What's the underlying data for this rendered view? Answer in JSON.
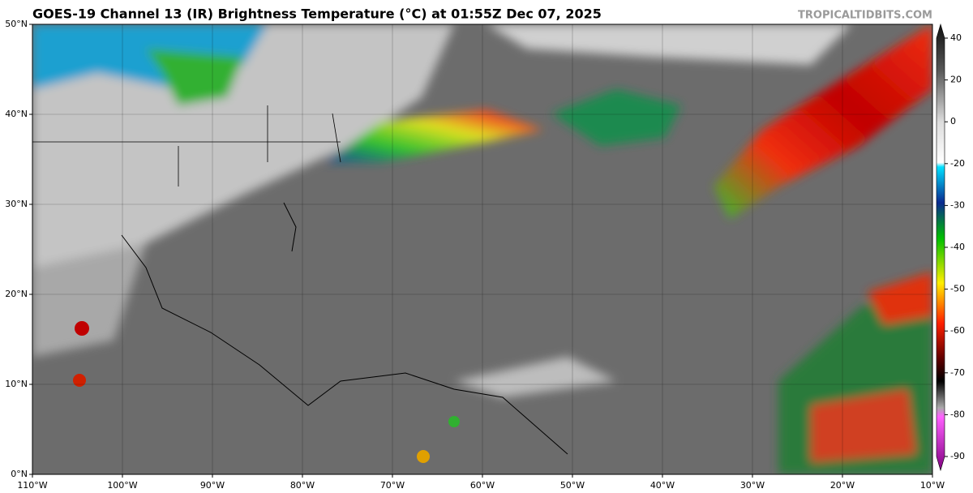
{
  "header": {
    "title": "GOES-19 Channel 13 (IR) Brightness Temperature (°C) at 01:55Z Dec 07, 2025",
    "source": "TROPICALTIDBITS.COM"
  },
  "map": {
    "lonlim": [
      -110,
      -10
    ],
    "latlim": [
      0,
      50
    ],
    "grid": true,
    "lonticks": [
      {
        "value": -110,
        "label": "110°W"
      },
      {
        "value": -100,
        "label": "100°W"
      },
      {
        "value": -90,
        "label": "90°W"
      },
      {
        "value": -80,
        "label": "80°W"
      },
      {
        "value": -70,
        "label": "70°W"
      },
      {
        "value": -60,
        "label": "60°W"
      },
      {
        "value": -50,
        "label": "50°W"
      },
      {
        "value": -40,
        "label": "40°W"
      },
      {
        "value": -30,
        "label": "30°W"
      },
      {
        "value": -20,
        "label": "20°W"
      },
      {
        "value": -10,
        "label": "10°W"
      }
    ],
    "latticks": [
      {
        "value": 0,
        "label": "0°N"
      },
      {
        "value": 10,
        "label": "10°N"
      },
      {
        "value": 20,
        "label": "20°N"
      },
      {
        "value": 30,
        "label": "30°N"
      },
      {
        "value": 40,
        "label": "40°N"
      },
      {
        "value": 50,
        "label": "50°N"
      }
    ]
  },
  "colorbar": {
    "ticks": [
      40,
      20,
      0,
      -20,
      -30,
      -40,
      -50,
      -60,
      -70,
      -80,
      -90
    ]
  }
}
